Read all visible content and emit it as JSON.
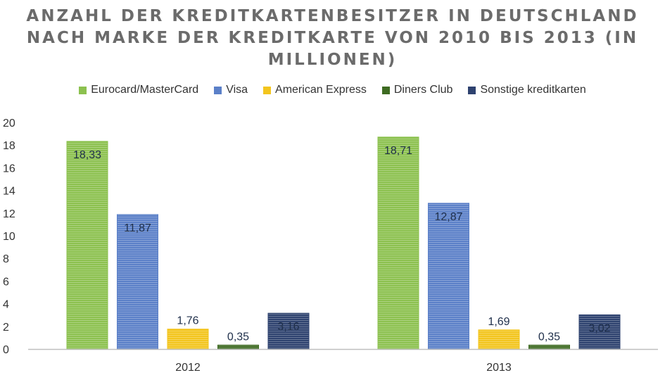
{
  "title_lines": [
    "ANZAHL DER KREDITKARTENBESITZER IN DEUTSCHLAND",
    "NACH MARKE DER KREDITKARTE VON 2010 BIS 2013 (IN",
    "MILLIONEN)"
  ],
  "chart_data": {
    "type": "bar",
    "title": "ANZAHL DER KREDITKARTENBESITZER IN DEUTSCHLAND NACH MARKE DER KREDITKARTE VON 2010 BIS 2013 (IN MILLIONEN)",
    "categories": [
      "2012",
      "2013"
    ],
    "series": [
      {
        "name": "Eurocard/MasterCard",
        "color": "#8cc14f",
        "values": [
          18.33,
          18.71
        ],
        "labels": [
          "18,33",
          "18,71"
        ]
      },
      {
        "name": "Visa",
        "color": "#5b80c8",
        "values": [
          11.87,
          12.87
        ],
        "labels": [
          "11,87",
          "12,87"
        ]
      },
      {
        "name": "American Express",
        "color": "#f3c51e",
        "values": [
          1.76,
          1.69
        ],
        "labels": [
          "1,76",
          "1,69"
        ]
      },
      {
        "name": "Diners Club",
        "color": "#3e6b22",
        "values": [
          0.35,
          0.35
        ],
        "labels": [
          "0,35",
          "0,35"
        ]
      },
      {
        "name": "Sonstige kreditkarten",
        "color": "#2e426f",
        "values": [
          3.16,
          3.02
        ],
        "labels": [
          "3,16",
          "3,02"
        ]
      }
    ],
    "yticks": [
      "0",
      "2",
      "4",
      "6",
      "8",
      "10",
      "12",
      "14",
      "16",
      "18",
      "20"
    ],
    "ylim": [
      0,
      20
    ],
    "grid": false,
    "legend_position": "top"
  }
}
